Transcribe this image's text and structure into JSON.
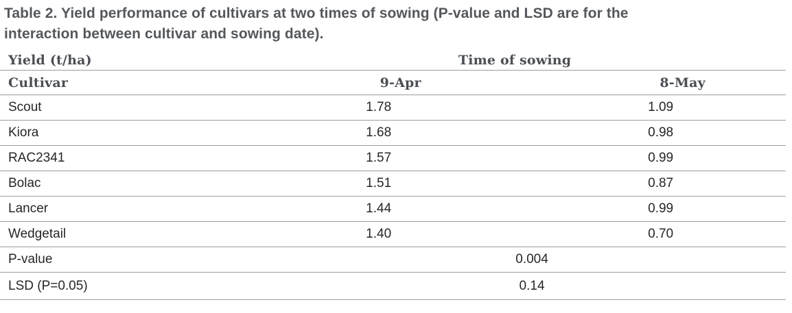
{
  "title": {
    "line1": "Table 2. Yield performance of cultivars at two times of sowing (P-value and LSD are for the",
    "line2": "interaction between cultivar and sowing date)."
  },
  "table": {
    "measure_label": "Yield (t/ha)",
    "group_header": "Time of sowing",
    "row_header": "Cultivar",
    "col_headers": [
      "9-Apr",
      "8-May"
    ],
    "rows": [
      {
        "cultivar": "Scout",
        "apr9": "1.78",
        "may8": "1.09"
      },
      {
        "cultivar": "Kiora",
        "apr9": "1.68",
        "may8": "0.98"
      },
      {
        "cultivar": "RAC2341",
        "apr9": "1.57",
        "may8": "0.99"
      },
      {
        "cultivar": "Bolac",
        "apr9": "1.51",
        "may8": "0.87"
      },
      {
        "cultivar": "Lancer",
        "apr9": "1.44",
        "may8": "0.99"
      },
      {
        "cultivar": "Wedgetail",
        "apr9": "1.40",
        "may8": "0.70"
      }
    ],
    "stats": [
      {
        "label": "P-value",
        "value": "0.004"
      },
      {
        "label": "LSD (P=0.05)",
        "value": "0.14"
      }
    ]
  },
  "colors": {
    "title_text": "#54575c",
    "header_text": "#4b4e53",
    "body_text": "#262626",
    "rule": "#9c9c9c",
    "background": "#ffffff"
  }
}
